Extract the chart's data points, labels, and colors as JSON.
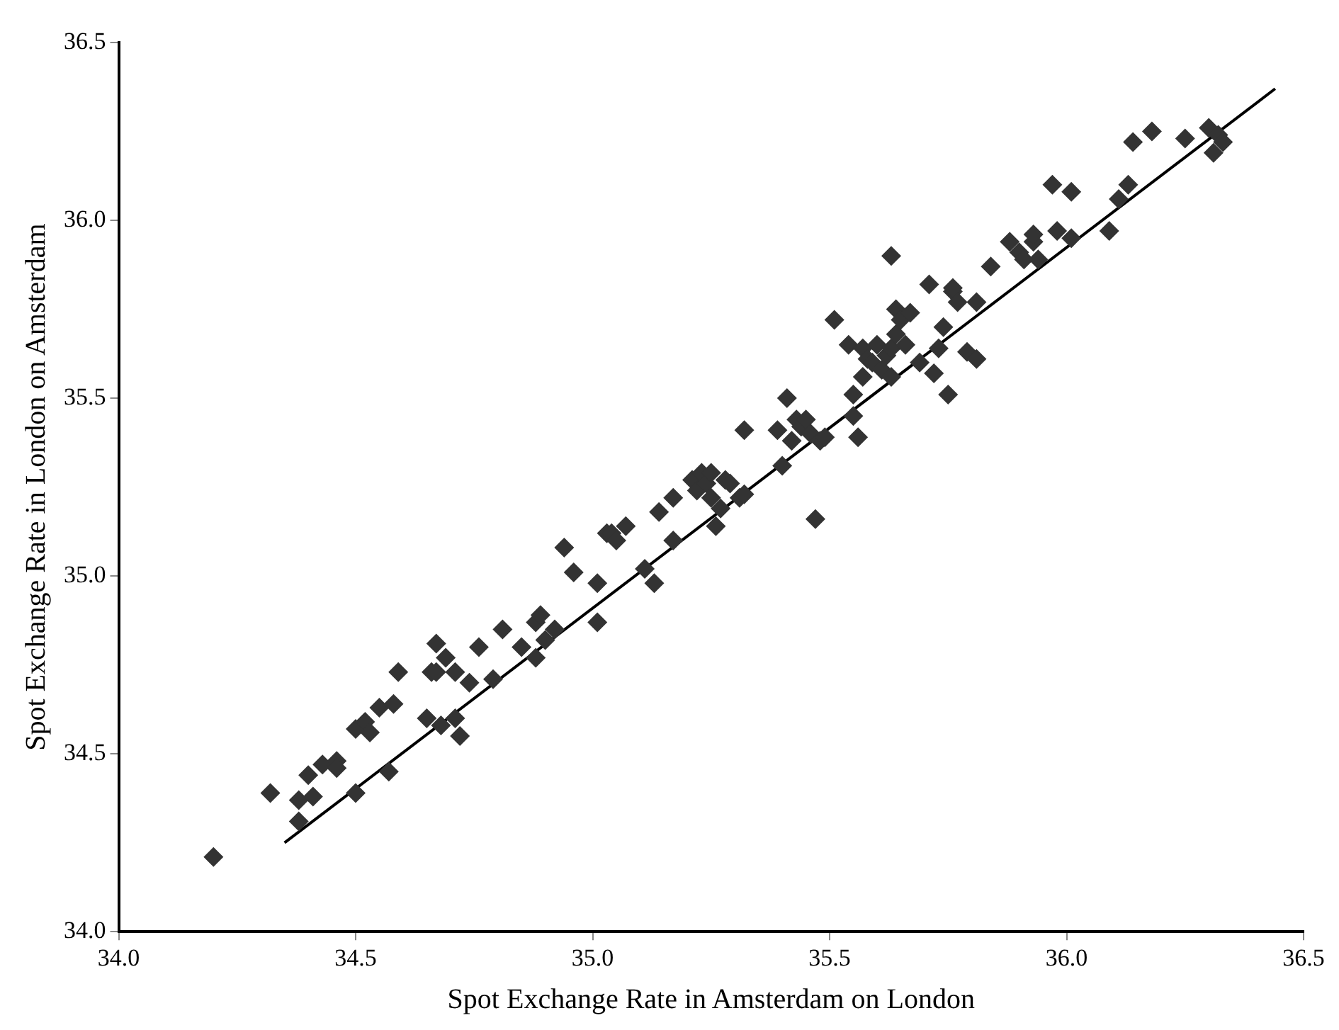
{
  "chart_data": {
    "type": "scatter",
    "xlabel": "Spot Exchange Rate in Amsterdam on London",
    "ylabel": "Spot Exchange Rate in London on Amsterdam",
    "xlim": [
      34.0,
      36.5
    ],
    "ylim": [
      34.0,
      36.5
    ],
    "xticks": [
      {
        "value": 34,
        "label": "34.0"
      },
      {
        "value": 34.5,
        "label": "34.5"
      },
      {
        "value": 35,
        "label": "35.0"
      },
      {
        "value": 35.5,
        "label": "35.5"
      },
      {
        "value": 36,
        "label": "36.0"
      },
      {
        "value": 36.5,
        "label": "36.5"
      }
    ],
    "yticks": [
      {
        "value": 34,
        "label": "34.0"
      },
      {
        "value": 34.5,
        "label": "34.5"
      },
      {
        "value": 35,
        "label": "35.0"
      },
      {
        "value": 35.5,
        "label": "35.5"
      },
      {
        "value": 36,
        "label": "36.0"
      },
      {
        "value": 36.5,
        "label": "36.5"
      }
    ],
    "grid": false,
    "legend": false,
    "series": [
      {
        "color": "#333333",
        "marker": "diamond",
        "x": [
          34.2,
          34.32,
          34.38,
          34.38,
          34.4,
          34.41,
          34.43,
          34.46,
          34.46,
          34.5,
          34.5,
          34.52,
          34.53,
          34.55,
          34.57,
          34.58,
          34.59,
          34.65,
          34.66,
          34.67,
          34.67,
          34.68,
          34.69,
          34.71,
          34.71,
          34.72,
          34.74,
          34.76,
          34.79,
          34.81,
          34.85,
          34.88,
          34.88,
          34.89,
          34.9,
          34.92,
          34.94,
          34.96,
          35.01,
          35.01,
          35.03,
          35.04,
          35.05,
          35.07,
          35.11,
          35.13,
          35.14,
          35.17,
          35.17,
          35.21,
          35.22,
          35.23,
          35.24,
          35.25,
          35.26,
          35.25,
          35.27,
          35.28,
          35.29,
          35.31,
          35.32,
          35.32,
          35.39,
          35.4,
          35.41,
          35.42,
          35.43,
          35.44,
          35.45,
          35.46,
          35.47,
          35.48,
          35.49,
          35.51,
          35.54,
          35.55,
          35.55,
          35.56,
          35.57,
          35.57,
          35.58,
          35.59,
          35.6,
          35.61,
          35.62,
          35.63,
          35.63,
          35.63,
          35.64,
          35.64,
          35.65,
          35.66,
          35.67,
          35.69,
          35.71,
          35.72,
          35.73,
          35.74,
          35.75,
          35.76,
          35.76,
          35.77,
          35.79,
          35.81,
          35.81,
          35.84,
          35.88,
          35.9,
          35.91,
          35.93,
          35.93,
          35.94,
          35.97,
          35.98,
          36.01,
          36.01,
          36.09,
          36.11,
          36.13,
          36.14,
          36.18,
          36.25,
          36.3,
          36.31,
          36.32,
          36.33
        ],
        "values": [
          34.21,
          34.39,
          34.31,
          34.37,
          34.44,
          34.38,
          34.47,
          34.48,
          34.46,
          34.57,
          34.39,
          34.59,
          34.56,
          34.63,
          34.45,
          34.64,
          34.73,
          34.6,
          34.73,
          34.81,
          34.73,
          34.58,
          34.77,
          34.73,
          34.6,
          34.55,
          34.7,
          34.8,
          34.71,
          34.85,
          34.8,
          34.77,
          34.87,
          34.89,
          34.82,
          34.85,
          35.08,
          35.01,
          34.87,
          34.98,
          35.12,
          35.12,
          35.1,
          35.14,
          35.02,
          34.98,
          35.18,
          35.1,
          35.22,
          35.27,
          35.24,
          35.29,
          35.26,
          35.22,
          35.14,
          35.29,
          35.19,
          35.27,
          35.26,
          35.22,
          35.41,
          35.23,
          35.41,
          35.31,
          35.5,
          35.38,
          35.44,
          35.42,
          35.44,
          35.4,
          35.16,
          35.38,
          35.39,
          35.72,
          35.65,
          35.45,
          35.51,
          35.39,
          35.64,
          35.56,
          35.61,
          35.6,
          35.65,
          35.58,
          35.62,
          35.64,
          35.9,
          35.56,
          35.68,
          35.75,
          35.72,
          35.65,
          35.74,
          35.6,
          35.82,
          35.57,
          35.64,
          35.7,
          35.51,
          35.8,
          35.81,
          35.77,
          35.63,
          35.61,
          35.77,
          35.87,
          35.94,
          35.91,
          35.89,
          35.94,
          35.96,
          35.89,
          36.1,
          35.97,
          36.08,
          35.95,
          35.97,
          36.06,
          36.1,
          36.22,
          36.25,
          36.23,
          36.26,
          36.19,
          36.24,
          36.22
        ]
      },
      {
        "type": "line",
        "color": "#000000",
        "x": [
          34.35,
          36.44
        ],
        "values": [
          34.25,
          36.37
        ]
      }
    ]
  }
}
